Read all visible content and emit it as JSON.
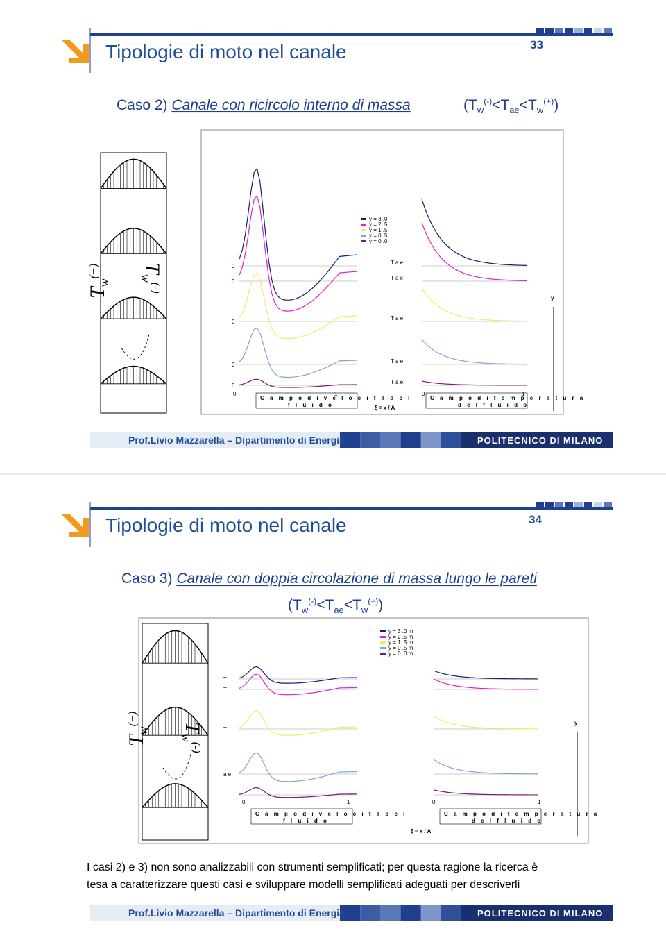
{
  "footer": {
    "author": "Prof.Livio Mazzarella – Dipartimento di Energia",
    "brand": "POLITECNICO DI MILANO"
  },
  "slides": [
    {
      "number": "33",
      "title": "Tipologie di moto nel canale",
      "case_label": "Caso 2)",
      "case_text": "Canale con ricircolo interno di massa",
      "condition": [
        "(T",
        "w",
        "(-)",
        "<T",
        "ae",
        "<T",
        "w",
        "(+)",
        ")"
      ],
      "wall_labels": [
        "T",
        "w",
        "(+)",
        "T",
        "w",
        "(-)"
      ],
      "legend": [
        "y = 3 .0",
        "y = 2 .5",
        "y = 1 .5",
        "y = 0 .5",
        "y = 0 .0"
      ],
      "left_ticks": [
        "0",
        "0",
        "0",
        "0",
        "0"
      ],
      "tae_labels": [
        "T a e",
        "T a e",
        "T a e",
        "T a e",
        "T a e"
      ],
      "x_ticks": [
        "0",
        "1",
        "0",
        "1"
      ],
      "y_axis": "y",
      "xi_label": "ξ = x / A",
      "velocity_caption": [
        "C a m p o   d i   v e l o c i t à   d e l",
        "f l u i d o"
      ],
      "temperature_caption": [
        "C a m p o   d i   t e m p e r a t u r a",
        "d e l   f l u i d o"
      ]
    },
    {
      "number": "34",
      "title": "Tipologie di moto nel canale",
      "case_label": "Caso 3)",
      "case_text": "Canale con doppia circolazione di massa lungo le pareti",
      "condition": [
        "(T",
        "w",
        "(-)",
        "<T",
        "ae",
        "<T",
        "w",
        "(+)",
        ")"
      ],
      "wall_labels": [
        "T",
        "w",
        "(+)",
        "T",
        "w",
        "(-)"
      ],
      "legend": [
        "y = 3 .0 m",
        "y = 2 .5 m",
        "y = 1 .5 m",
        "y = 0 .5 m",
        "y = 0 .0 m"
      ],
      "left_ticks": [
        "T",
        "T",
        "T",
        "a e",
        "T"
      ],
      "x_ticks": [
        "0",
        "1",
        "0",
        "1"
      ],
      "y_axis": "y",
      "xi_label": "ξ = x / A",
      "velocity_caption": [
        "C a m p o   d i   v e l o c i t à   d e l",
        "f l u i d o"
      ],
      "temperature_caption": [
        "C a m p o   d i   t e m p e r a t u r a",
        "d e l   f l u i d o"
      ],
      "paragraph": [
        "I casi 2) e 3) non sono analizzabili con strumenti semplificati; per questa ragione la ricerca è",
        "tesa a caratterizzare questi casi e sviluppare modelli semplificati adeguati per descriverli"
      ]
    }
  ]
}
